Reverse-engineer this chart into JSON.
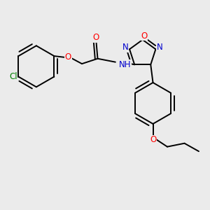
{
  "background_color": "#ebebeb",
  "bond_color": "#000000",
  "atom_colors": {
    "O": "#ff0000",
    "N": "#0000cd",
    "Cl": "#008000",
    "C": "#000000",
    "H": "#555555"
  },
  "font_size": 8.5,
  "line_width": 1.4
}
